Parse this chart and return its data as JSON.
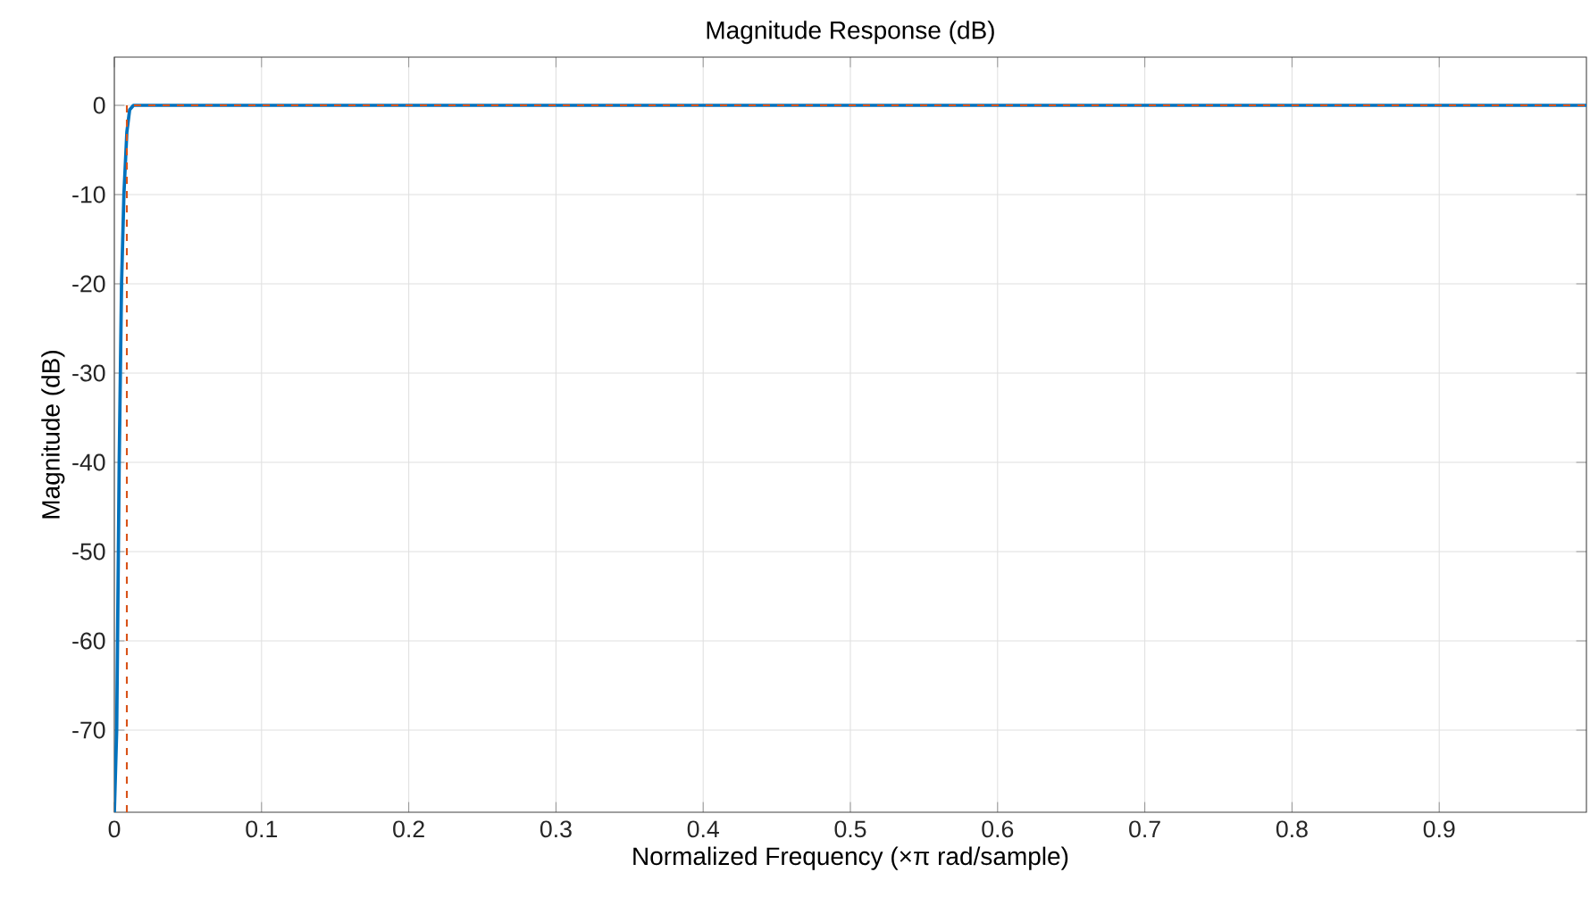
{
  "chart_data": {
    "type": "line",
    "title": "Magnitude Response (dB)",
    "xlabel": "Normalized Frequency (×π rad/sample)",
    "ylabel": "Magnitude (dB)",
    "xlim": [
      0,
      1
    ],
    "ylim": [
      -79.2,
      5.4
    ],
    "xticks": [
      0,
      0.1,
      0.2,
      0.3,
      0.4,
      0.5,
      0.6,
      0.7,
      0.8,
      0.9
    ],
    "yticks": [
      -70,
      -60,
      -50,
      -40,
      -30,
      -20,
      -10,
      0
    ],
    "grid": true,
    "series": [
      {
        "color": "#0072bd",
        "line_style": "solid",
        "x": [
          0,
          0.0016,
          0.0033,
          0.0049,
          0.0065,
          0.0085,
          0.0104,
          0.013,
          0.2,
          0.5,
          1
        ],
        "values": [
          -79.2,
          -70,
          -40,
          -20,
          -10,
          -3,
          -0.5,
          0,
          0,
          0,
          0
        ]
      },
      {
        "color": "#d95319",
        "line_style": "dashed",
        "x": [
          0.0085,
          0.0085,
          1
        ],
        "values": [
          -79.2,
          0,
          0
        ]
      }
    ]
  }
}
